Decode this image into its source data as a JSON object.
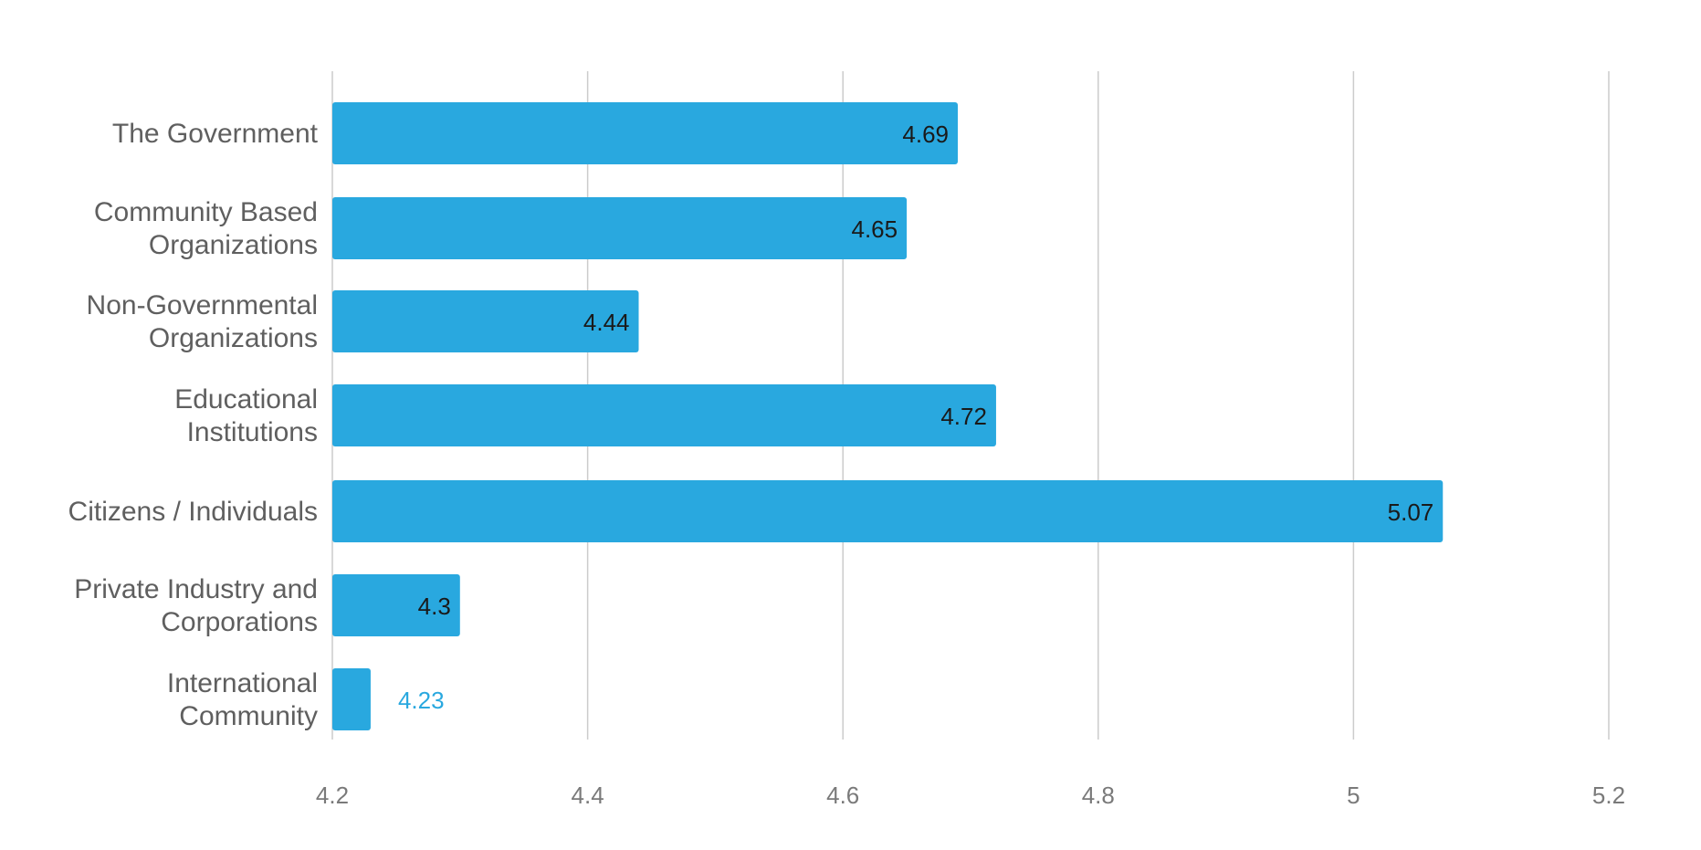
{
  "chart_data": {
    "type": "bar",
    "orientation": "horizontal",
    "categories": [
      [
        "The Government"
      ],
      [
        "Community Based",
        "Organizations"
      ],
      [
        "Non-Governmental",
        "Organizations"
      ],
      [
        "Educational",
        "Institutions"
      ],
      [
        "Citizens / Individuals"
      ],
      [
        "Private Industry and",
        "Corporations"
      ],
      [
        "International",
        "Community"
      ]
    ],
    "values": [
      4.69,
      4.65,
      4.44,
      4.72,
      5.07,
      4.3,
      4.23
    ],
    "value_labels": [
      "4.69",
      "4.65",
      "4.44",
      "4.72",
      "5.07",
      "4.3",
      "4.23"
    ],
    "x_ticks": [
      "4.2",
      "4.4",
      "4.6",
      "4.8",
      "5",
      "5.2"
    ],
    "xlim": [
      4.2,
      5.2
    ],
    "xlabel": "",
    "ylabel": "",
    "grid": true,
    "legend": "none",
    "colors": {
      "bar": "#29a8df",
      "inside_label": "#1a1a1a",
      "outside_label": "#29a8df",
      "grid": "#cccccc",
      "category_text": "#5f5f5f",
      "tick_text": "#7a7a7a"
    }
  }
}
